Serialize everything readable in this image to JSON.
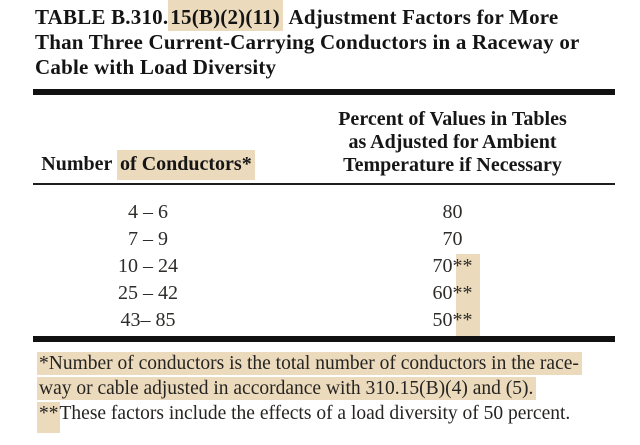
{
  "colors": {
    "highlight": "#ebdabc",
    "ink": "#161616",
    "body_ink": "#2e2c2a",
    "rule": "#111111",
    "background": "#ffffff"
  },
  "title": {
    "line1_pre": "TABLE B.310.",
    "line1_hl": "15(B)(2)(11)",
    "line1_post": " Adjustment Factors for More",
    "line2": "Than Three Current-Carrying Conductors in a Raceway or",
    "line3": "Cable with Load Diversity"
  },
  "table": {
    "header": {
      "left_pre": "Number ",
      "left_hl": "of Conductors*",
      "right_lines": [
        "Percent of Values in Tables",
        "as Adjusted for Ambient",
        "Temperature if Necessary"
      ]
    },
    "rows": [
      {
        "conductors": "4 – 6",
        "percent": "80"
      },
      {
        "conductors": "7 – 9",
        "percent": "70"
      },
      {
        "conductors": "10 – 24",
        "percent": "70**"
      },
      {
        "conductors": "25 – 42",
        "percent": "60**"
      },
      {
        "conductors": "43– 85",
        "percent": "50**"
      }
    ]
  },
  "footnotes": {
    "note1_line1": "*Number of conductors is the total number of conductors in the race-",
    "note1_line2": "way or cable adjusted in accordance with 310.15(B)(4) and (5).",
    "note2_marker": "**",
    "note2_text": "These factors include the effects of a load diversity of 50 percent."
  }
}
